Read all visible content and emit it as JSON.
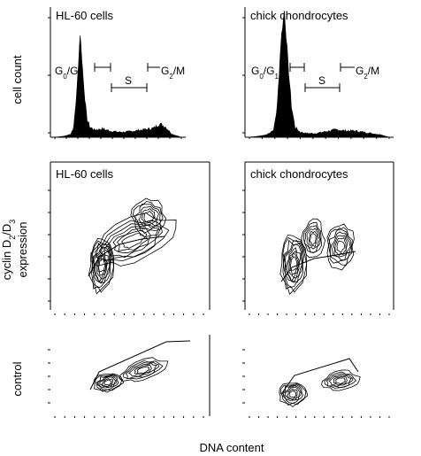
{
  "figure": {
    "xlabel": "DNA content",
    "row_labels": {
      "top": "cell count",
      "middle_line1_prefix": "cyclin D",
      "middle_sub1": "2",
      "middle_slash": "/D",
      "middle_sub2": "3",
      "middle_line2": "expression",
      "bottom": "control"
    },
    "panel_titles": {
      "left": "HL-60 cells",
      "right": "chick chondrocytes"
    },
    "gates": {
      "g0g1_a": "G",
      "g0g1_sub0": "0",
      "g0g1_mid": "/G",
      "g0g1_sub1": "1",
      "s": "S",
      "g2m_a": "G",
      "g2m_sub": "2",
      "g2m_b": "/M"
    }
  },
  "chart_data": [
    {
      "type": "area",
      "panel": "HL-60 cells histogram",
      "ylabel": "cell count",
      "x": [
        0,
        6,
        10,
        12,
        14,
        16,
        18,
        20,
        22,
        25,
        30,
        35,
        40,
        45,
        50,
        55,
        60,
        63,
        66,
        70,
        74,
        80
      ],
      "y": [
        0,
        1,
        3,
        10,
        45,
        100,
        55,
        20,
        10,
        7,
        8,
        6,
        5,
        5,
        6,
        7,
        8,
        9,
        13,
        10,
        3,
        0
      ]
    },
    {
      "type": "area",
      "panel": "chick chondrocytes histogram",
      "ylabel": "cell count",
      "x": [
        0,
        6,
        10,
        14,
        16,
        18,
        20,
        22,
        24,
        26,
        29,
        33,
        38,
        42,
        46,
        50,
        55,
        60,
        65,
        70,
        75,
        80
      ],
      "y": [
        0,
        1,
        2,
        6,
        25,
        75,
        100,
        60,
        25,
        8,
        4,
        3,
        3,
        4,
        5,
        6,
        5,
        5,
        4,
        3,
        2,
        0
      ]
    },
    {
      "type": "scatter",
      "panel": "HL-60 cells cyclin D2/D3 contour",
      "ylabel": "cyclin D2/D3 expression"
    },
    {
      "type": "scatter",
      "panel": "chick chondrocytes cyclin D2/D3 contour",
      "ylabel": "cyclin D2/D3 expression"
    },
    {
      "type": "scatter",
      "panel": "HL-60 cells control contour",
      "ylabel": "control"
    },
    {
      "type": "scatter",
      "panel": "chick chondrocytes control contour",
      "ylabel": "control"
    }
  ]
}
